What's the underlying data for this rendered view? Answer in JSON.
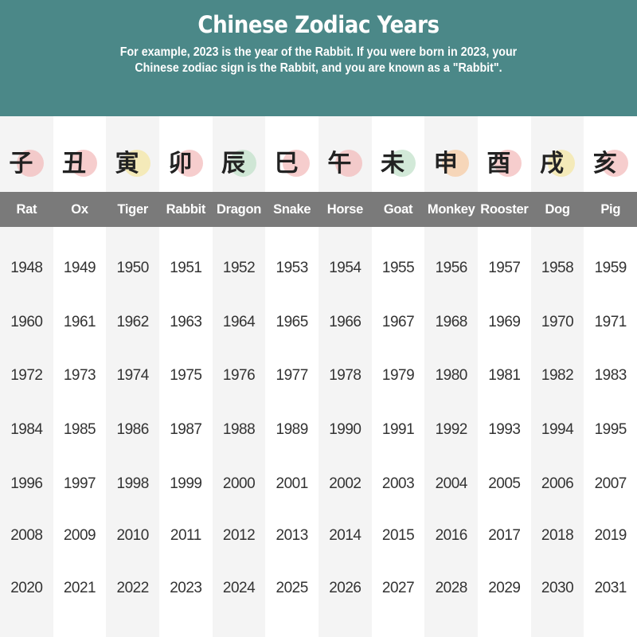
{
  "header": {
    "title": "Chinese Zodiac Years",
    "subtitle_line1": "For example, 2023 is the year of the Rabbit. If you were born in 2023, your",
    "subtitle_line2": "Chinese zodiac sign is the Rabbit, and you are known as a \"Rabbit\"."
  },
  "colors": {
    "header_bg": "#4b8888",
    "name_bar": "#7a7a7a",
    "stripe": "#f4f4f4"
  },
  "animals": [
    {
      "name": "Rat",
      "icon": "rat-icon",
      "glyph": "子",
      "blob": "#f2b8b8",
      "years": [
        "1948",
        "1960",
        "1972",
        "1984",
        "1996",
        "2008",
        "2020"
      ]
    },
    {
      "name": "Ox",
      "icon": "ox-icon",
      "glyph": "丑",
      "blob": "#f2b8b8",
      "years": [
        "1949",
        "1961",
        "1973",
        "1985",
        "1997",
        "2009",
        "2021"
      ]
    },
    {
      "name": "Tiger",
      "icon": "tiger-icon",
      "glyph": "寅",
      "blob": "#f3e6a0",
      "years": [
        "1950",
        "1962",
        "1974",
        "1986",
        "1998",
        "2010",
        "2022"
      ]
    },
    {
      "name": "Rabbit",
      "icon": "rabbit-icon",
      "glyph": "卯",
      "blob": "#f2b8b8",
      "years": [
        "1951",
        "1963",
        "1975",
        "1987",
        "1999",
        "2011",
        "2023"
      ]
    },
    {
      "name": "Dragon",
      "icon": "dragon-icon",
      "glyph": "辰",
      "blob": "#bfe0c8",
      "years": [
        "1952",
        "1964",
        "1976",
        "1988",
        "2000",
        "2012",
        "2024"
      ]
    },
    {
      "name": "Snake",
      "icon": "snake-icon",
      "glyph": "巳",
      "blob": "#f2b8b8",
      "years": [
        "1953",
        "1965",
        "1977",
        "1989",
        "2001",
        "2013",
        "2025"
      ]
    },
    {
      "name": "Horse",
      "icon": "horse-icon",
      "glyph": "午",
      "blob": "#f2b8b8",
      "years": [
        "1954",
        "1966",
        "1978",
        "1990",
        "2002",
        "2014",
        "2026"
      ]
    },
    {
      "name": "Goat",
      "icon": "goat-icon",
      "glyph": "未",
      "blob": "#bfe0c8",
      "years": [
        "1955",
        "1967",
        "1979",
        "1991",
        "2003",
        "2015",
        "2027"
      ]
    },
    {
      "name": "Monkey",
      "icon": "monkey-icon",
      "glyph": "申",
      "blob": "#f6c9a0",
      "years": [
        "1956",
        "1968",
        "1980",
        "1992",
        "2004",
        "2016",
        "2028"
      ]
    },
    {
      "name": "Rooster",
      "icon": "rooster-icon",
      "glyph": "酉",
      "blob": "#f2b8b8",
      "years": [
        "1957",
        "1969",
        "1981",
        "1993",
        "2005",
        "2017",
        "2029"
      ]
    },
    {
      "name": "Dog",
      "icon": "dog-icon",
      "glyph": "戌",
      "blob": "#f3e6a0",
      "years": [
        "1958",
        "1970",
        "1982",
        "1994",
        "2006",
        "2018",
        "2030"
      ]
    },
    {
      "name": "Pig",
      "icon": "pig-icon",
      "glyph": "亥",
      "blob": "#f2b8b8",
      "years": [
        "1959",
        "1971",
        "1983",
        "1995",
        "2007",
        "2019",
        "2031"
      ]
    }
  ]
}
